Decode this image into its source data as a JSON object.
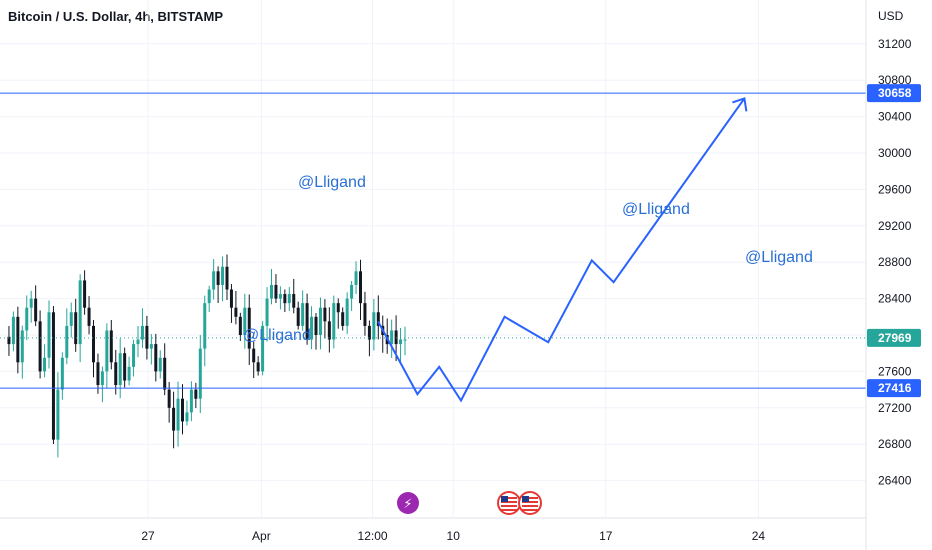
{
  "header": {
    "title": "Bitcoin / U.S. Dollar, 4h, BITSTAMP"
  },
  "colors": {
    "up": "#26a69a",
    "down": "#131722",
    "line": "#2962ff",
    "path": "#2962ff",
    "price_badge": "#26a69a",
    "level_badge": "#2962ff",
    "grid": "#f0f3fa",
    "watermark": "#2a6fd6"
  },
  "icons": [
    "lightning-event-icon",
    "us-flag-event-icon",
    "us-flag-event-icon"
  ],
  "chart_data": {
    "type": "candlestick",
    "title": "Bitcoin / U.S. Dollar, 4h, BITSTAMP",
    "currency": "USD",
    "y_ticks": [
      26400,
      26800,
      27200,
      27600,
      28000,
      28400,
      28800,
      29200,
      29600,
      30000,
      30400,
      30800,
      31200
    ],
    "x_ticks": [
      "27",
      "Apr",
      "12:00",
      "10",
      "17",
      "24"
    ],
    "current_price": "27969",
    "horizontal_levels": [
      "30658",
      "27416"
    ],
    "watermarks": [
      "@Lligand",
      "@Lligand",
      "@Lligand",
      "@Lligand"
    ],
    "closes": [
      27900,
      28200,
      27700,
      28050,
      28300,
      28400,
      28150,
      27600,
      27750,
      28250,
      26850,
      27400,
      27750,
      28100,
      28250,
      27900,
      28600,
      28300,
      28100,
      27700,
      27450,
      27600,
      28050,
      27700,
      27450,
      27800,
      27500,
      27650,
      27900,
      27950,
      28100,
      27850,
      27900,
      27600,
      27750,
      27400,
      27200,
      26950,
      27300,
      27050,
      27150,
      27400,
      27300,
      27850,
      28350,
      28500,
      28700,
      28550,
      28750,
      28500,
      28300,
      28200,
      28000,
      28300,
      27850,
      27700,
      27600,
      28100,
      28400,
      28550,
      28400,
      28450,
      28350,
      28450,
      28300,
      28100,
      28350,
      27950,
      28200,
      28000,
      28300,
      28150,
      27950,
      28350,
      28250,
      28100,
      28400,
      28550,
      28700,
      28350,
      28100,
      27950,
      28250,
      28100,
      28000,
      27900,
      28050,
      27900,
      27950,
      27950
    ],
    "projection_path": [
      {
        "x": "Apr 6 12:00",
        "y": 28150
      },
      {
        "x": "Apr 8",
        "y": 27350
      },
      {
        "x": "Apr 9",
        "y": 27650
      },
      {
        "x": "Apr 10",
        "y": 27280
      },
      {
        "x": "Apr 12",
        "y": 28200
      },
      {
        "x": "Apr 14",
        "y": 27920
      },
      {
        "x": "Apr 16",
        "y": 28820
      },
      {
        "x": "Apr 17",
        "y": 28580
      },
      {
        "x": "Apr 23",
        "y": 30600
      }
    ]
  }
}
